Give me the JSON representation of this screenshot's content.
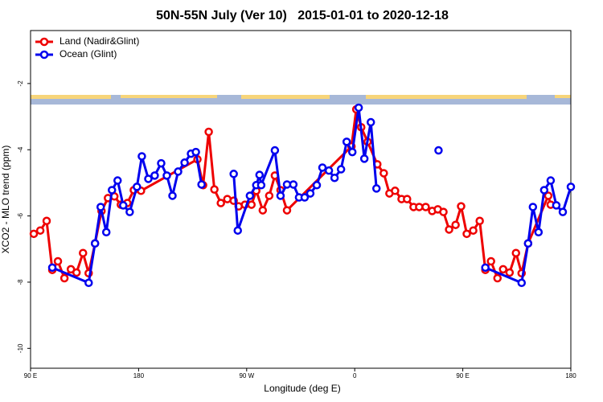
{
  "chart_data": {
    "type": "line",
    "title": "50N-55N July (Ver 10)   2015-01-01 to 2020-12-18",
    "xlabel": "Longitude (deg E)",
    "ylabel": "XCO2 - MLO trend (ppm)",
    "xlim": [
      90,
      540
    ],
    "ylim": [
      -10.6,
      -0.4
    ],
    "xticks": [
      {
        "value": 90,
        "label": "90 E"
      },
      {
        "value": 180,
        "label": "180"
      },
      {
        "value": 270,
        "label": "90 W"
      },
      {
        "value": 360,
        "label": "0"
      },
      {
        "value": 450,
        "label": "90 E"
      },
      {
        "value": 540,
        "label": "180"
      }
    ],
    "yticks": [
      -10,
      -8,
      -6,
      -4,
      -2
    ],
    "legend": "top-left",
    "series": [
      {
        "name": "Land (Nadir&Glint)",
        "color": "#ee0000",
        "x": [
          92.7,
          98.1,
          103.4,
          108.1,
          112.8,
          118.2,
          123.6,
          128.3,
          133.7,
          138.4,
          143.7,
          149.1,
          154.5,
          159.8,
          165.2,
          170.6,
          176,
          182,
          229,
          233.7,
          238.4,
          243.1,
          248.5,
          253.9,
          259.2,
          263.3,
          268.6,
          274,
          278,
          283.4,
          288.8,
          293.5,
          298.2,
          303.6,
          357.3,
          361.3,
          365.4,
          370.7,
          378.8,
          384.2,
          388.9,
          393.6,
          399,
          403.6,
          409,
          413.7,
          419.1,
          424.5,
          429.2,
          433.9,
          438.6,
          444,
          448.6,
          453.3,
          458.7,
          464.1,
          468.8,
          473.5,
          478.9,
          483.6,
          489,
          494.3,
          499,
          504.4,
          521.2,
          523.2
        ],
        "values": [
          -6.54,
          -6.44,
          -6.15,
          -7.63,
          -7.37,
          -7.88,
          -7.61,
          -7.71,
          -7.12,
          -7.73,
          -6.83,
          -5.85,
          -5.46,
          -5.41,
          -5.66,
          -5.61,
          -5.22,
          -5.24,
          -4.29,
          -5.07,
          -3.46,
          -5.2,
          -5.61,
          -5.49,
          -5.54,
          -5.71,
          -5.66,
          -5.66,
          -5.24,
          -5.83,
          -5.39,
          -4.78,
          -5.22,
          -5.83,
          -3.9,
          -2.78,
          -3.32,
          -3.76,
          -4.44,
          -4.71,
          -5.32,
          -5.24,
          -5.49,
          -5.49,
          -5.73,
          -5.73,
          -5.73,
          -5.85,
          -5.8,
          -5.88,
          -6.41,
          -6.27,
          -5.71,
          -6.54,
          -6.44,
          -6.15,
          -7.63,
          -7.37,
          -7.88,
          -7.61,
          -7.71,
          -7.12,
          -7.73,
          -6.83,
          -5.39,
          -5.66
        ]
      },
      {
        "name": "Ocean (Glint)",
        "color": "#0000ee",
        "x": [
          108.1,
          138.4,
          143.7,
          148.4,
          153.1,
          157.8,
          162.5,
          167.2,
          172.6,
          178.6,
          182.7,
          188.1,
          193.4,
          198.8,
          203.5,
          208.2,
          212.9,
          218.3,
          223.6,
          227.7,
          232.4,
          null,
          259.2,
          262.6,
          272.7,
          278,
          280.7,
          282.1,
          293.5,
          298.2,
          303.6,
          308.9,
          313.6,
          318.3,
          323,
          328.4,
          333.1,
          338.5,
          343.2,
          348.6,
          353.3,
          358,
          363.3,
          368,
          373.4,
          378.1,
          null,
          429.8,
          null,
          468.8,
          499,
          504.4,
          508.4,
          513.1,
          517.8,
          523.2,
          527.9,
          533.3,
          540
        ],
        "values": [
          -7.56,
          -8.02,
          -6.83,
          -5.73,
          -6.49,
          -5.22,
          -4.93,
          -5.68,
          -5.88,
          -5.12,
          -4.2,
          -4.88,
          -4.78,
          -4.41,
          -4.78,
          -5.39,
          -4.66,
          -4.39,
          -4.12,
          -4.07,
          -5.05,
          null,
          -4.73,
          -6.44,
          -5.39,
          -5.07,
          -4.76,
          -5.07,
          -4.02,
          -5.39,
          -5.05,
          -5.05,
          -5.44,
          -5.44,
          -5.32,
          -5.07,
          -4.54,
          -4.63,
          -4.85,
          -4.59,
          -3.76,
          -4.07,
          -2.73,
          -4.27,
          -3.17,
          -5.17,
          null,
          -4.02,
          null,
          -7.56,
          -8.02,
          -6.83,
          -5.73,
          -6.49,
          -5.22,
          -4.93,
          -5.68,
          -5.88,
          -5.12
        ]
      }
    ]
  }
}
